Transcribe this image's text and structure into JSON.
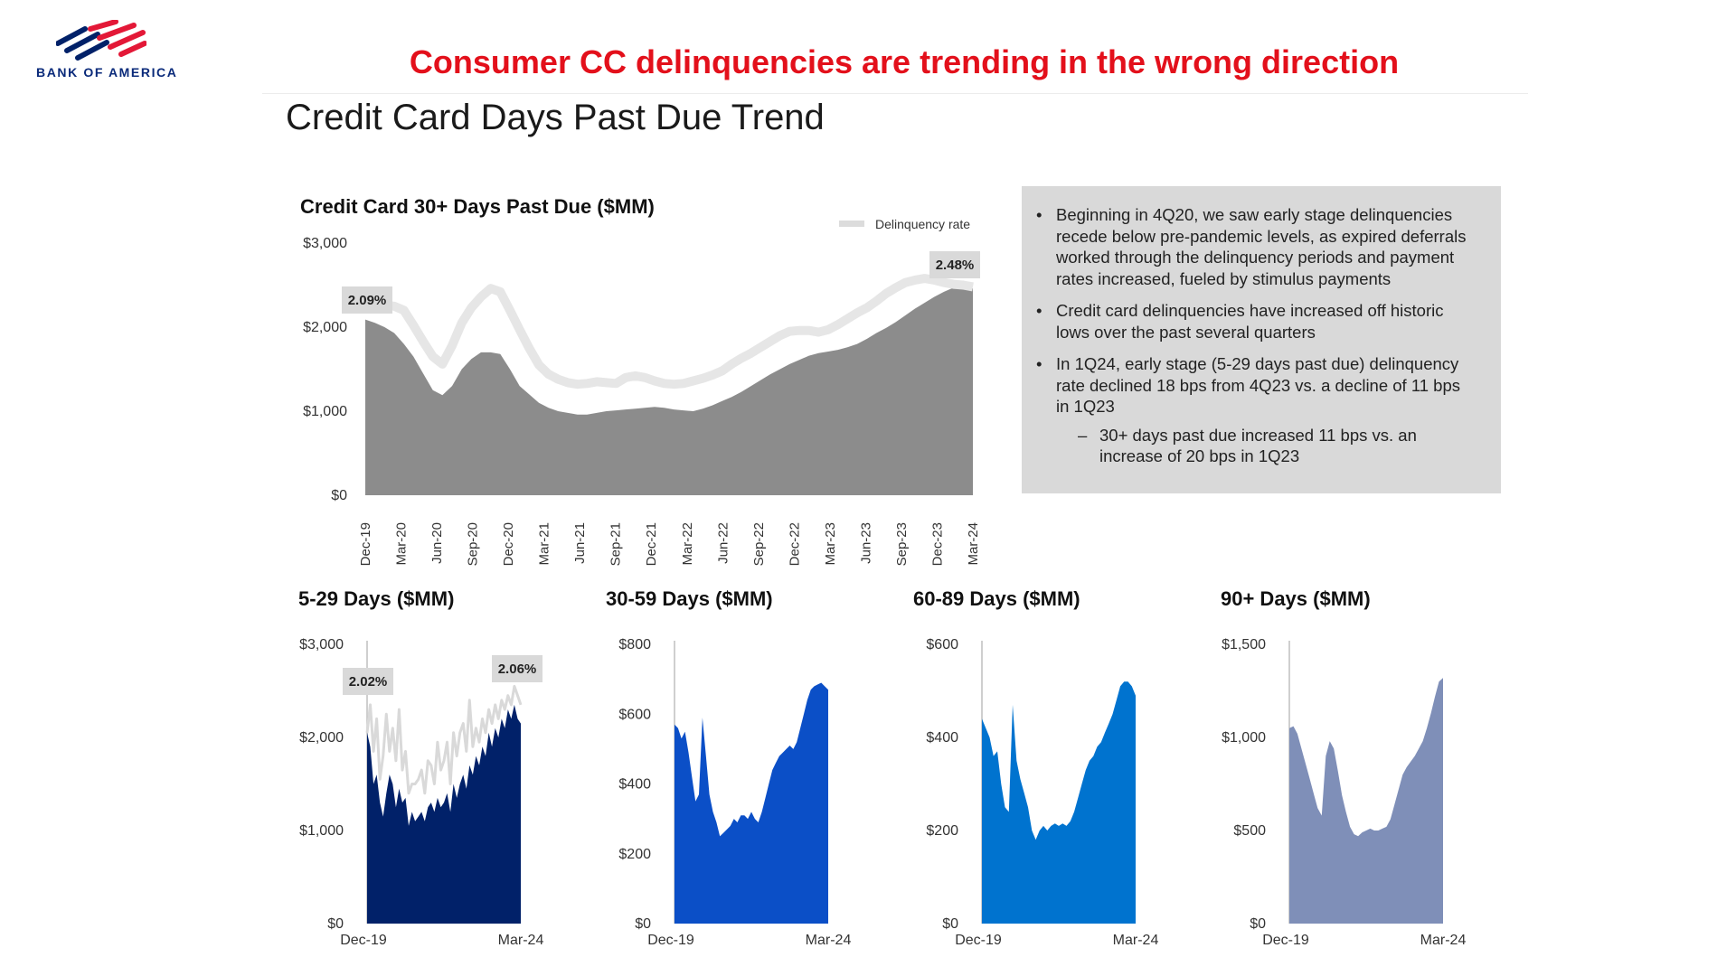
{
  "brand": {
    "name": "BANK OF AMERICA"
  },
  "headline": "Consumer CC delinquencies are trending in the wrong direction",
  "page_title": "Credit Card Days Past Due Trend",
  "notes": {
    "bullets": [
      "Beginning in 4Q20, we saw early stage delinquencies recede below pre-pandemic levels, as expired deferrals worked through the delinquency periods and payment rates increased, fueled by stimulus payments",
      "Credit card delinquencies have increased off historic lows over the past several quarters",
      "In 1Q24, early stage (5-29 days past due) delinquency rate declined 18 bps from 4Q23 vs. a decline of 11 bps in 1Q23"
    ],
    "sub_bullet": "30+ days past due increased 11 bps vs. an increase of 20 bps in 1Q23"
  },
  "chart_data": [
    {
      "id": "main",
      "type": "area",
      "title": "Credit Card 30+ Days Past Due ($MM)",
      "legend": "Delinquency rate",
      "legend_position": "top-right",
      "color": "#8c8c8c",
      "rate_color": "#e6e6e6",
      "ylim": [
        0,
        3000
      ],
      "yticks": [
        "$3,000",
        "$2,000",
        "$1,000",
        "$0"
      ],
      "ytick_values": [
        3000,
        2000,
        1000,
        0
      ],
      "xticks": [
        "Dec-19",
        "Mar-20",
        "Jun-20",
        "Sep-20",
        "Dec-20",
        "Mar-21",
        "Jun-21",
        "Sep-21",
        "Dec-21",
        "Mar-22",
        "Jun-22",
        "Sep-22",
        "Dec-22",
        "Mar-23",
        "Jun-23",
        "Sep-23",
        "Dec-23",
        "Mar-24"
      ],
      "start_label": "2.09%",
      "end_label": "2.48%",
      "values": [
        2090,
        2050,
        2000,
        1930,
        1800,
        1650,
        1450,
        1250,
        1190,
        1300,
        1500,
        1620,
        1700,
        1700,
        1680,
        1500,
        1300,
        1200,
        1100,
        1040,
        1000,
        980,
        960,
        960,
        980,
        1000,
        1010,
        1020,
        1030,
        1040,
        1050,
        1040,
        1020,
        1010,
        1000,
        1030,
        1070,
        1120,
        1170,
        1230,
        1300,
        1370,
        1440,
        1500,
        1560,
        1610,
        1660,
        1690,
        1710,
        1730,
        1760,
        1800,
        1860,
        1930,
        1990,
        2060,
        2140,
        2220,
        2290,
        2360,
        2420,
        2470,
        2480,
        2460
      ],
      "rate": [
        2270,
        2270,
        2260,
        2250,
        2200,
        2020,
        1830,
        1650,
        1560,
        1780,
        2050,
        2230,
        2360,
        2460,
        2420,
        2200,
        1970,
        1750,
        1550,
        1440,
        1380,
        1340,
        1320,
        1330,
        1350,
        1340,
        1330,
        1400,
        1420,
        1400,
        1360,
        1330,
        1320,
        1330,
        1360,
        1390,
        1430,
        1480,
        1560,
        1630,
        1690,
        1760,
        1830,
        1900,
        1950,
        1960,
        1960,
        1940,
        1970,
        2030,
        2100,
        2170,
        2230,
        2310,
        2400,
        2470,
        2530,
        2560,
        2580,
        2560,
        2530,
        2510,
        2500,
        2480
      ]
    },
    {
      "id": "d5_29",
      "type": "area",
      "title": "5-29 Days ($MM)",
      "color": "#012169",
      "rate_color": "#d9d9d9",
      "ylim": [
        0,
        3000
      ],
      "yticks": [
        "$3,000",
        "$2,000",
        "$1,000",
        "$0"
      ],
      "ytick_values": [
        3000,
        2000,
        1000,
        0
      ],
      "xticks": [
        "Dec-19",
        "Mar-24"
      ],
      "start_label": "2.02%",
      "end_label": "2.06%",
      "values": [
        2050,
        1900,
        1500,
        1600,
        1300,
        1150,
        1400,
        1600,
        1500,
        1250,
        1450,
        1300,
        1350,
        1050,
        1200,
        1100,
        1150,
        1200,
        1100,
        1250,
        1300,
        1200,
        1350,
        1250,
        1300,
        1400,
        1200,
        1500,
        1350,
        1500,
        1600,
        1450,
        1700,
        1600,
        1800,
        1700,
        1900,
        1800,
        2050,
        1900,
        2100,
        2000,
        2200,
        2100,
        2300,
        2200,
        2350,
        2200,
        2150
      ],
      "rate": [
        2050,
        2350,
        1850,
        2200,
        1550,
        1800,
        2250,
        1850,
        2100,
        1750,
        2300,
        1650,
        1850,
        1400,
        1500,
        1500,
        1550,
        1650,
        1400,
        1750,
        1700,
        1500,
        1950,
        1650,
        1750,
        1950,
        1500,
        2050,
        1800,
        2050,
        2150,
        1850,
        2400,
        1900,
        2100,
        1950,
        2200,
        2050,
        2300,
        2150,
        2350,
        2200,
        2400,
        2300,
        2450,
        2350,
        2550,
        2450,
        2350
      ]
    },
    {
      "id": "d30_59",
      "type": "area",
      "title": "30-59 Days ($MM)",
      "color": "#0b4fc7",
      "ylim": [
        0,
        800
      ],
      "yticks": [
        "$800",
        "$600",
        "$400",
        "$200",
        "$0"
      ],
      "ytick_values": [
        800,
        600,
        400,
        200,
        0
      ],
      "xticks": [
        "Dec-19",
        "Mar-24"
      ],
      "values": [
        570,
        560,
        530,
        550,
        490,
        420,
        350,
        370,
        590,
        480,
        370,
        320,
        290,
        250,
        260,
        270,
        280,
        300,
        290,
        310,
        310,
        300,
        320,
        300,
        290,
        320,
        360,
        400,
        440,
        460,
        480,
        490,
        500,
        510,
        500,
        520,
        560,
        600,
        640,
        670,
        680,
        685,
        690,
        680,
        670
      ]
    },
    {
      "id": "d60_89",
      "type": "area",
      "title": "60-89 Days ($MM)",
      "color": "#0073cf",
      "ylim": [
        0,
        600
      ],
      "yticks": [
        "$600",
        "$400",
        "$200",
        "$0"
      ],
      "ytick_values": [
        600,
        400,
        200,
        0
      ],
      "xticks": [
        "Dec-19",
        "Mar-24"
      ],
      "values": [
        440,
        420,
        400,
        360,
        370,
        300,
        250,
        240,
        470,
        350,
        310,
        280,
        250,
        200,
        180,
        200,
        210,
        200,
        210,
        215,
        210,
        215,
        210,
        220,
        240,
        270,
        300,
        330,
        350,
        360,
        380,
        390,
        410,
        430,
        450,
        480,
        510,
        520,
        520,
        510,
        490
      ]
    },
    {
      "id": "d90",
      "type": "area",
      "title": "90+ Days ($MM)",
      "color": "#7f8fb8",
      "ylim": [
        0,
        1500
      ],
      "yticks": [
        "$1,500",
        "$1,000",
        "$500",
        "$0"
      ],
      "ytick_values": [
        1500,
        1000,
        500,
        0
      ],
      "xticks": [
        "Dec-19",
        "Mar-24"
      ],
      "values": [
        1050,
        1060,
        1020,
        940,
        860,
        780,
        700,
        620,
        580,
        900,
        980,
        940,
        820,
        690,
        600,
        520,
        480,
        470,
        490,
        500,
        510,
        500,
        500,
        510,
        520,
        560,
        640,
        720,
        800,
        840,
        870,
        900,
        940,
        980,
        1050,
        1130,
        1220,
        1300,
        1320
      ]
    }
  ]
}
